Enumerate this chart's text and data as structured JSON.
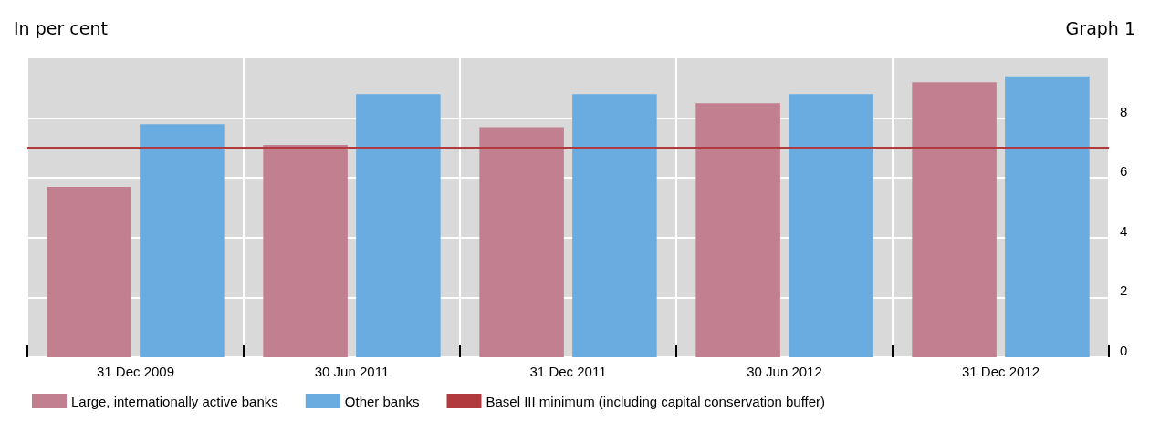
{
  "chart_data": {
    "type": "bar",
    "title": "Graph 1",
    "ylabel": "In per cent",
    "categories": [
      "31 Dec 2009",
      "30 Jun 2011",
      "31 Dec 2011",
      "30 Jun 2012",
      "31 Dec 2012"
    ],
    "series": [
      {
        "name": "Large, internationally active banks",
        "color": "#c27f8f",
        "values": [
          5.7,
          7.1,
          7.7,
          8.5,
          9.2
        ]
      },
      {
        "name": "Other banks",
        "color": "#6aace0",
        "values": [
          7.8,
          8.8,
          8.8,
          8.8,
          9.4
        ]
      }
    ],
    "ref_lines": [
      {
        "axis": "y",
        "value": 7,
        "label": "Basel III minimum (including capital conservation buffer)",
        "color": "#b03a3e",
        "line_style": "solid"
      }
    ],
    "ylim": [
      0,
      10
    ],
    "yticks": [
      0,
      2,
      4,
      6,
      8
    ],
    "grid": true,
    "legend": "bottom"
  }
}
